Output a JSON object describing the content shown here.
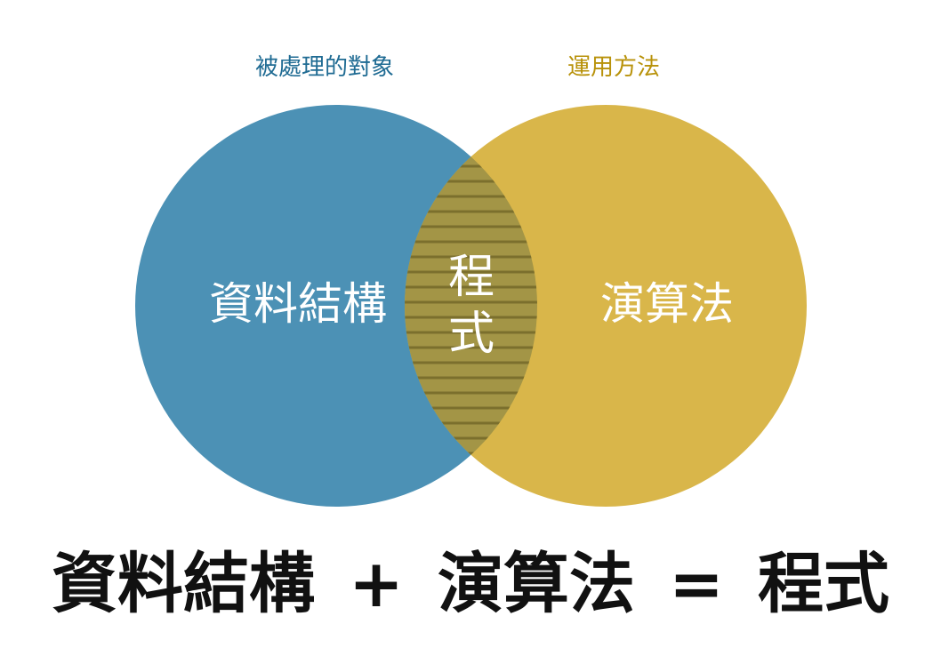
{
  "labels": {
    "left_top": "被處理的對象",
    "right_top": "運用方法"
  },
  "circles": {
    "left": "資料結構",
    "right": "演算法",
    "intersection": "程式"
  },
  "equation": {
    "term1": "資料結構",
    "op1": "+",
    "term2": "演算法",
    "op2": "=",
    "result": "程式"
  },
  "colors": {
    "left_circle": "#4c91b5",
    "right_circle": "#d9b64a",
    "intersection": "#a39546",
    "stripe": "#7b6f2d",
    "left_label": "#1f6b93",
    "right_label": "#b8920a"
  }
}
